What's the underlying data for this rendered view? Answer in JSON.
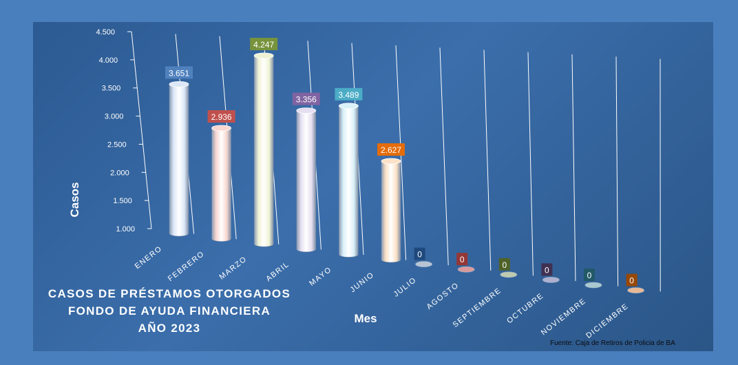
{
  "chart_data": {
    "type": "bar",
    "style": "3d-cylinder",
    "title_lines": [
      "CASOS DE PRÉSTAMOS OTORGADOS",
      "FONDO DE AYUDA FINANCIERA",
      "AÑO 2023"
    ],
    "xlabel": "Mes",
    "ylabel": "Casos",
    "source": "Fuente: Caja de Retiros de Policia de BA",
    "ylim": [
      1000,
      4500
    ],
    "yticks": [
      "1.000",
      "1.500",
      "2.000",
      "2.500",
      "3.000",
      "3.500",
      "4.000",
      "4.500"
    ],
    "ytick_values": [
      1000,
      1500,
      2000,
      2500,
      3000,
      3500,
      4000,
      4500
    ],
    "categories": [
      "ENERO",
      "FEBRERO",
      "MARZO",
      "ABRIL",
      "MAYO",
      "JUNIO",
      "JULIO",
      "AGOSTO",
      "SEPTIEMBRE",
      "OCTUBRE",
      "NOVIEMBRE",
      "DICIEMBRE"
    ],
    "values": [
      3651,
      2936,
      4247,
      3356,
      3489,
      2627,
      0,
      0,
      0,
      0,
      0,
      0
    ],
    "value_labels": [
      "3.651",
      "2.936",
      "4.247",
      "3.356",
      "3.489",
      "2.627",
      "0",
      "0",
      "0",
      "0",
      "0",
      "0"
    ],
    "colors": {
      "cylinders": [
        "#dce8f7",
        "#f7d6cf",
        "#eff3d4",
        "#e5def0",
        "#d9f0f7",
        "#fbe1c6",
        "#b8c4d4",
        "#d89a9a",
        "#bfcab0",
        "#aeb0cf",
        "#a8c9cf",
        "#e7b896"
      ],
      "label_boxes": [
        "#4f81bd",
        "#c0504d",
        "#77933c",
        "#8064a2",
        "#4bacc6",
        "#e46c0a",
        "#1f497d",
        "#953735",
        "#4f6228",
        "#403152",
        "#215968",
        "#974806"
      ]
    },
    "grid": true,
    "legend": "none"
  }
}
